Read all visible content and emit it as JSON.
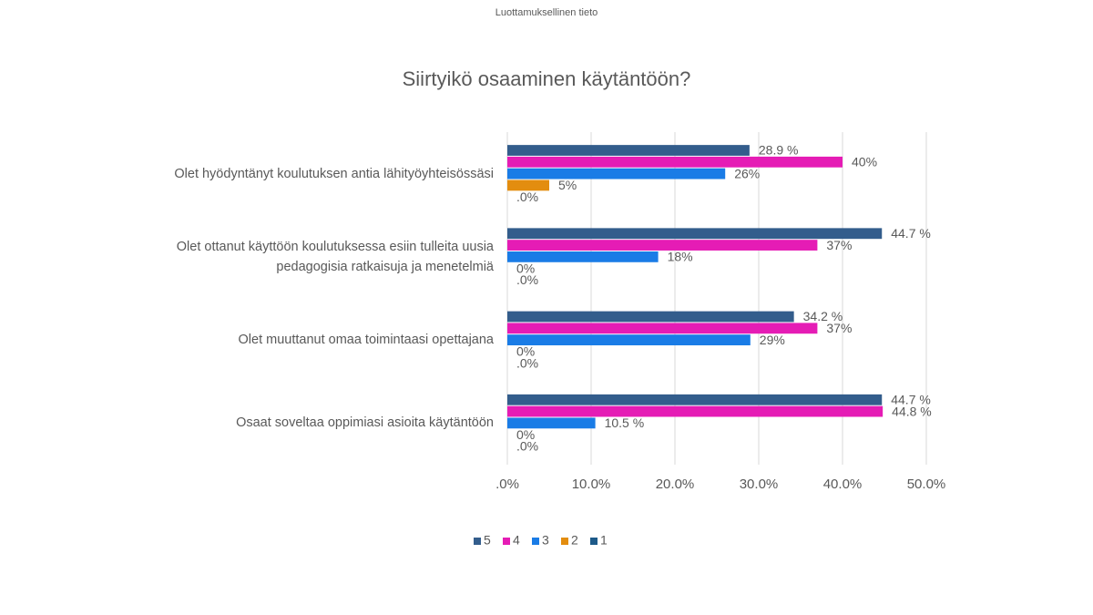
{
  "header": "Luottamuksellinen tieto",
  "chart_data": {
    "type": "hbar",
    "title": "Siirtyikö osaaminen käytäntöön?",
    "categories": [
      "Olet hyödyntänyt koulutuksen antia lähityöyhteisössäsi",
      "Olet ottanut käyttöön koulutuksessa esiin tulleita uusia pedagogisia ratkaisuja ja menetelmiä",
      "Olet muuttanut omaa toimintaasi opettajana",
      "Osaat soveltaa oppimiasi asioita käytäntöön"
    ],
    "series": [
      {
        "name": "5",
        "color": "#335d8c",
        "values": [
          28.9,
          44.7,
          34.2,
          44.7
        ],
        "value_labels": [
          "28.9 %",
          "44.7 %",
          "34.2 %",
          "44.7 %"
        ]
      },
      {
        "name": "4",
        "color": "#e51cb5",
        "values": [
          40,
          37,
          37,
          44.8
        ],
        "value_labels": [
          "40%",
          "37%",
          "37%",
          "44.8 %"
        ]
      },
      {
        "name": "3",
        "color": "#1a7ce6",
        "values": [
          26,
          18,
          29,
          10.5
        ],
        "value_labels": [
          "26%",
          "18%",
          "29%",
          "10.5 %"
        ]
      },
      {
        "name": "2",
        "color": "#e38d0f",
        "values": [
          5,
          0,
          0,
          0
        ],
        "value_labels": [
          "5%",
          "0%",
          "0%",
          "0%"
        ]
      },
      {
        "name": "1",
        "color": "#1d5a89",
        "values": [
          0,
          0,
          0,
          0
        ],
        "value_labels": [
          ".0%",
          ".0%",
          ".0%",
          ".0%"
        ]
      }
    ],
    "xlim": [
      0,
      50
    ],
    "xticks": [
      {
        "value": 0,
        "label": ".0%"
      },
      {
        "value": 10,
        "label": "10.0%"
      },
      {
        "value": 20,
        "label": "20.0%"
      },
      {
        "value": 30,
        "label": "30.0%"
      },
      {
        "value": 40,
        "label": "40.0%"
      },
      {
        "value": 50,
        "label": "50.0%"
      }
    ],
    "grid": true,
    "legend": "bottom"
  }
}
